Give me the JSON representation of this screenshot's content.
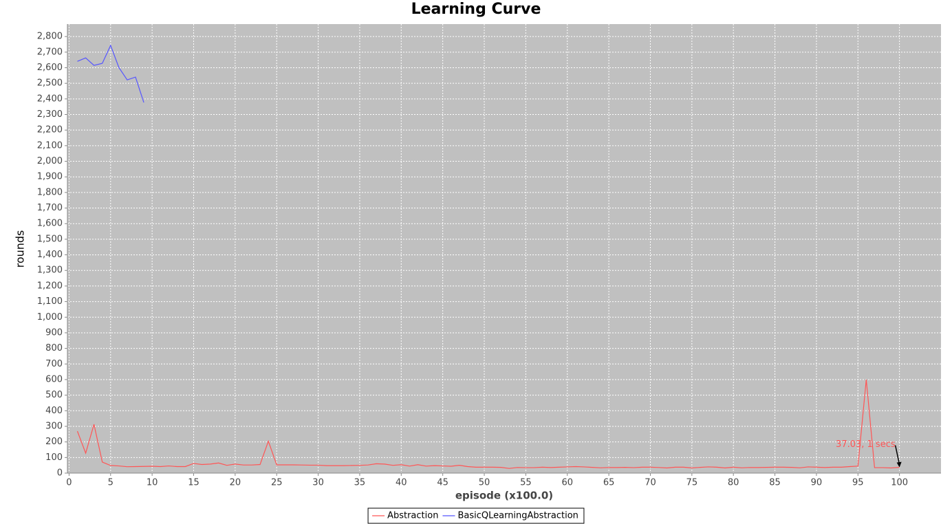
{
  "chart_data": {
    "type": "line",
    "title": "Learning Curve",
    "x_label": "episode (x100.0)",
    "y_label": "rounds",
    "x": [
      1,
      2,
      3,
      4,
      5,
      6,
      7,
      8,
      9,
      10,
      11,
      12,
      13,
      14,
      15,
      16,
      17,
      18,
      19,
      20,
      21,
      22,
      23,
      24,
      25,
      26,
      27,
      28,
      29,
      30,
      31,
      32,
      33,
      34,
      35,
      36,
      37,
      38,
      39,
      40,
      41,
      42,
      43,
      44,
      45,
      46,
      47,
      48,
      49,
      50,
      51,
      52,
      53,
      54,
      55,
      56,
      57,
      58,
      59,
      60,
      61,
      62,
      63,
      64,
      65,
      66,
      67,
      68,
      69,
      70,
      71,
      72,
      73,
      74,
      75,
      76,
      77,
      78,
      79,
      80,
      81,
      82,
      83,
      84,
      85,
      86,
      87,
      88,
      89,
      90,
      91,
      92,
      93,
      94,
      95,
      96,
      97,
      98,
      99,
      100
    ],
    "series": [
      {
        "name": "Abstraction",
        "color": "#ff5555",
        "values": [
          269,
          128,
          313,
          71,
          49,
          46,
          41,
          42,
          43,
          44,
          42,
          46,
          42,
          42,
          62,
          55,
          58,
          65,
          50,
          58,
          52,
          52,
          55,
          205,
          53,
          53,
          53,
          52,
          51,
          51,
          48,
          48,
          48,
          49,
          50,
          52,
          60,
          58,
          50,
          54,
          45,
          54,
          45,
          48,
          46,
          44,
          50,
          42,
          38,
          38,
          38,
          37,
          30,
          36,
          35,
          35,
          38,
          36,
          38,
          40,
          42,
          40,
          37,
          34,
          36,
          36,
          37,
          35,
          38,
          38,
          36,
          33,
          38,
          38,
          33,
          37,
          40,
          38,
          33,
          38,
          34,
          36,
          36,
          37,
          38,
          38,
          37,
          34,
          40,
          38,
          36,
          38,
          38,
          42,
          45,
          600,
          35,
          35,
          33,
          37.03
        ]
      },
      {
        "name": "BasicQLearningAbstraction",
        "color": "#5555ff",
        "values": [
          2641,
          2663,
          2615,
          2628,
          2743,
          2601,
          2522,
          2540,
          2377,
          null,
          null,
          null,
          null,
          null,
          null,
          null,
          null,
          null,
          null,
          null,
          null,
          null,
          null,
          null,
          null,
          null,
          null,
          null,
          null,
          null,
          null,
          null,
          null,
          null,
          null,
          null,
          null,
          null,
          null,
          null,
          null,
          null,
          null,
          null,
          null,
          null,
          null,
          null,
          null,
          null,
          null,
          null,
          null,
          null,
          null,
          null,
          null,
          null,
          null,
          null,
          null,
          null,
          null,
          null,
          null,
          null,
          null,
          null,
          null,
          null,
          null,
          null,
          null,
          null,
          null,
          null,
          null,
          null,
          null,
          null,
          null,
          null,
          null,
          null,
          null,
          null,
          null,
          null,
          null,
          null,
          null,
          null,
          null,
          null,
          null,
          null,
          null,
          null,
          null,
          null
        ]
      }
    ],
    "annotation": {
      "text": "37.03, 1 secs",
      "x": 100,
      "y": 37.03,
      "color": "#ff5555"
    },
    "xlim": [
      -0.2,
      105
    ],
    "ylim": [
      0,
      2880
    ],
    "xticks": [
      0,
      5,
      10,
      15,
      20,
      25,
      30,
      35,
      40,
      45,
      50,
      55,
      60,
      65,
      70,
      75,
      80,
      85,
      90,
      95,
      100
    ],
    "yticks": [
      0,
      100,
      200,
      300,
      400,
      500,
      600,
      700,
      800,
      900,
      {
        "value": 1000,
        "label": "1,000"
      },
      {
        "value": 1100,
        "label": "1,100"
      },
      {
        "value": 1200,
        "label": "1,200"
      },
      {
        "value": 1300,
        "label": "1,300"
      },
      {
        "value": 1400,
        "label": "1,400"
      },
      {
        "value": 1500,
        "label": "1,500"
      },
      {
        "value": 1600,
        "label": "1,600"
      },
      {
        "value": 1700,
        "label": "1,700"
      },
      {
        "value": 1800,
        "label": "1,800"
      },
      {
        "value": 1900,
        "label": "1,900"
      },
      {
        "value": 2000,
        "label": "2,000"
      },
      {
        "value": 2100,
        "label": "2,100"
      },
      {
        "value": 2200,
        "label": "2,200"
      },
      {
        "value": 2300,
        "label": "2,300"
      },
      {
        "value": 2400,
        "label": "2,400"
      },
      {
        "value": 2500,
        "label": "2,500"
      },
      {
        "value": 2600,
        "label": "2,600"
      },
      {
        "value": 2700,
        "label": "2,700"
      },
      {
        "value": 2800,
        "label": "2,800"
      }
    ],
    "grid": true,
    "plot_background": "#c0c0c0",
    "legend": "bottom"
  }
}
